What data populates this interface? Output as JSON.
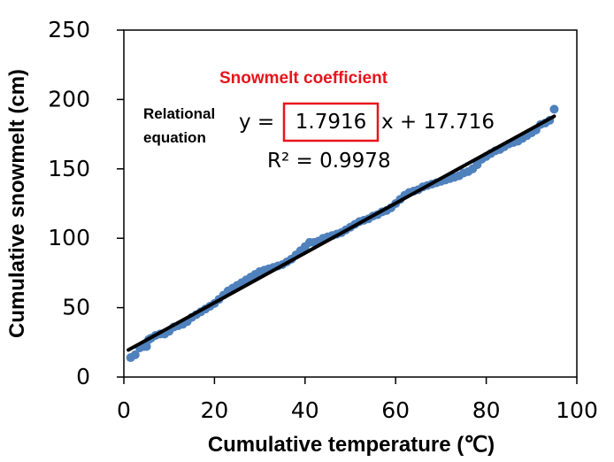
{
  "chart_data": {
    "type": "scatter",
    "xlabel": "Cumulative temperature (℃)",
    "ylabel": "Cumulative snowmelt (cm)",
    "xlim": [
      0,
      100
    ],
    "ylim": [
      0,
      250
    ],
    "x_ticks": [
      "0",
      "20",
      "40",
      "60",
      "80",
      "100"
    ],
    "y_ticks": [
      "0",
      "50",
      "100",
      "150",
      "200",
      "250"
    ],
    "grid": false,
    "legend": "none",
    "colors": {
      "points": "#4f81bd",
      "trendline": "#000000",
      "annotation": "#e8141c",
      "plot_border": "#000000"
    },
    "series": [
      {
        "x": [
          1.5,
          2.5,
          3.5,
          4.5,
          5,
          5.5,
          6,
          7,
          8,
          9,
          10,
          11,
          12,
          13,
          14,
          15,
          16,
          17,
          18,
          19,
          20,
          21,
          22,
          23,
          24,
          25,
          26,
          27,
          28,
          29,
          30,
          31,
          32,
          33,
          34,
          35,
          36,
          37,
          38,
          39,
          40,
          41,
          42,
          43,
          44,
          45,
          46,
          47,
          48,
          49,
          50,
          51,
          52,
          53,
          54,
          55,
          56,
          57,
          58,
          59,
          60,
          61,
          62,
          63,
          64,
          65,
          66,
          67,
          68,
          69,
          70,
          71,
          72,
          73,
          74,
          75,
          76,
          77,
          78,
          79,
          80,
          81,
          82,
          83,
          84,
          85,
          86,
          87,
          88,
          89,
          90,
          91,
          92,
          93,
          94,
          95
        ],
        "y": [
          14,
          16,
          21,
          22,
          22,
          27,
          28,
          30,
          31,
          31,
          33,
          36,
          37,
          38,
          40,
          43,
          45,
          47,
          49,
          51,
          53,
          56,
          59,
          62,
          64,
          66,
          68,
          70,
          72,
          74,
          76,
          77,
          78,
          79,
          80,
          81,
          83,
          85,
          88,
          91,
          94,
          97,
          97,
          98,
          100,
          101,
          102,
          103,
          104,
          106,
          108,
          110,
          112,
          113,
          114,
          116,
          117,
          119,
          120,
          122,
          125,
          128,
          131,
          133,
          134,
          135,
          137,
          138,
          139,
          140,
          141,
          142,
          143,
          144,
          145,
          147,
          148,
          150,
          153,
          157,
          159,
          161,
          163,
          164,
          166,
          168,
          169,
          170,
          172,
          174,
          176,
          178,
          182,
          183,
          185,
          193
        ]
      }
    ],
    "trendline": {
      "slope": 1.7916,
      "intercept": 17.716,
      "x_range": [
        1,
        95
      ]
    },
    "annotations": {
      "coefficient_label": "Snowmelt coefficient",
      "relational_line1": "Relational",
      "relational_line2": "equation",
      "eq_prefix": "y =",
      "eq_coefficient": "1.7916",
      "eq_suffix": "x + 17.716",
      "r_squared": "R² = 0.9978"
    }
  }
}
